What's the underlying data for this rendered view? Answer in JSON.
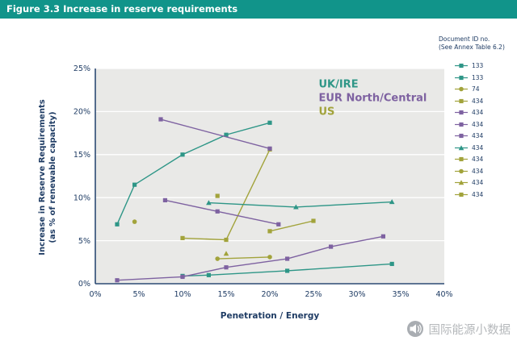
{
  "header": {
    "title": "Figure 3.3 Increase in reserve requirements"
  },
  "colors": {
    "header_bg": "#11948a",
    "teal": "#2e9687",
    "purple": "#7e62a1",
    "olive": "#a2a33b",
    "text": "#1f3c64",
    "axis": "#2c4a73",
    "plot_bg": "#e9e9e7",
    "grid": "#ffffff",
    "watermark": "#b5b8bb"
  },
  "legend": {
    "title_line1": "Document ID no.",
    "title_line2": "(See Annex Table 6.2)"
  },
  "watermark": {
    "text": "国际能源小数据"
  },
  "chart_data": {
    "type": "line",
    "title": "Figure 3.3 Increase in reserve requirements",
    "xlabel": "Penetration / Energy",
    "ylabel_line1": "Increase in Reserve Requirements",
    "ylabel_line2": "(as % of renewable capacity)",
    "xlim": [
      0,
      40
    ],
    "ylim": [
      0,
      25
    ],
    "x_tick_values": [
      0,
      5,
      10,
      15,
      20,
      25,
      30,
      35,
      40
    ],
    "x_tick_labels": [
      "0%",
      "5%",
      "10%",
      "15%",
      "20%",
      "25%",
      "30%",
      "35%",
      "40%"
    ],
    "y_tick_values": [
      0,
      5,
      10,
      15,
      20,
      25
    ],
    "y_tick_labels": [
      "0%",
      "5%",
      "10%",
      "15%",
      "20%",
      "25%"
    ],
    "grid": "horizontal-white",
    "legend_position": "right",
    "annotations": [
      {
        "text": "UK/IRE",
        "x": 25.6,
        "y": 22.8,
        "color": "#2e9687"
      },
      {
        "text": "EUR North/Central",
        "x": 25.6,
        "y": 21.2,
        "color": "#7e62a1"
      },
      {
        "text": "US",
        "x": 25.6,
        "y": 19.6,
        "color": "#a2a33b"
      }
    ],
    "series": [
      {
        "id": "133",
        "region": "UK/IRE",
        "color": "#2e9687",
        "marker": "square",
        "points": [
          [
            2.5,
            6.9
          ],
          [
            4.5,
            11.5
          ],
          [
            10,
            15.0
          ],
          [
            15,
            17.3
          ],
          [
            20,
            18.7
          ]
        ]
      },
      {
        "id": "133",
        "region": "UK/IRE",
        "color": "#2e9687",
        "marker": "square",
        "points": [
          [
            10,
            0.9
          ],
          [
            13,
            1.0
          ],
          [
            22,
            1.5
          ],
          [
            34,
            2.3
          ]
        ]
      },
      {
        "id": "74",
        "region": "US",
        "color": "#a2a33b",
        "marker": "circle",
        "points": [
          [
            4.5,
            7.2
          ]
        ]
      },
      {
        "id": "434",
        "region": "US",
        "color": "#a2a33b",
        "marker": "square",
        "points": [
          [
            10,
            5.3
          ],
          [
            15,
            5.1
          ],
          [
            20,
            15.6
          ]
        ]
      },
      {
        "id": "434",
        "region": "EUR North/Central",
        "color": "#7e62a1",
        "marker": "square",
        "points": [
          [
            7.5,
            19.1
          ],
          [
            20,
            15.7
          ]
        ]
      },
      {
        "id": "434",
        "region": "EUR North/Central",
        "color": "#7e62a1",
        "marker": "square",
        "points": [
          [
            8,
            9.7
          ],
          [
            14,
            8.4
          ],
          [
            21,
            6.9
          ]
        ]
      },
      {
        "id": "434",
        "region": "EUR North/Central",
        "color": "#7e62a1",
        "marker": "square",
        "points": [
          [
            2.5,
            0.4
          ],
          [
            10,
            0.8
          ],
          [
            15,
            1.9
          ],
          [
            22,
            2.9
          ],
          [
            27,
            4.3
          ],
          [
            33,
            5.5
          ]
        ]
      },
      {
        "id": "434",
        "region": "UK/IRE",
        "color": "#2e9687",
        "marker": "triangle",
        "points": [
          [
            13,
            9.4
          ],
          [
            23,
            8.9
          ],
          [
            34,
            9.5
          ]
        ]
      },
      {
        "id": "434",
        "region": "US",
        "color": "#a2a33b",
        "marker": "square",
        "points": [
          [
            20,
            6.1
          ],
          [
            25,
            7.3
          ]
        ]
      },
      {
        "id": "434",
        "region": "US",
        "color": "#a2a33b",
        "marker": "circle",
        "points": [
          [
            14,
            2.9
          ],
          [
            20,
            3.1
          ]
        ]
      },
      {
        "id": "434",
        "region": "US",
        "color": "#a2a33b",
        "marker": "triangle",
        "points": [
          [
            15,
            3.5
          ]
        ]
      },
      {
        "id": "434",
        "region": "US",
        "color": "#a2a33b",
        "marker": "square",
        "points": [
          [
            14,
            10.2
          ]
        ]
      }
    ]
  }
}
